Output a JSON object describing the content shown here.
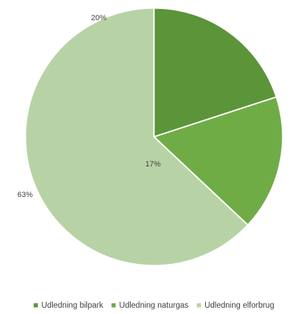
{
  "chart_data": {
    "type": "pie",
    "title": "",
    "start_angle_deg": 0,
    "direction": "clockwise",
    "legend_position": "bottom",
    "slices": [
      {
        "name": "Udledning bilpark",
        "value": 20,
        "label": "20%",
        "color": "#5b9439"
      },
      {
        "name": "Udledning naturgas",
        "value": 17,
        "label": "17%",
        "color": "#6fac46"
      },
      {
        "name": "Udledning elforbrug",
        "value": 63,
        "label": "63%",
        "color": "#b7d3a5"
      }
    ]
  }
}
